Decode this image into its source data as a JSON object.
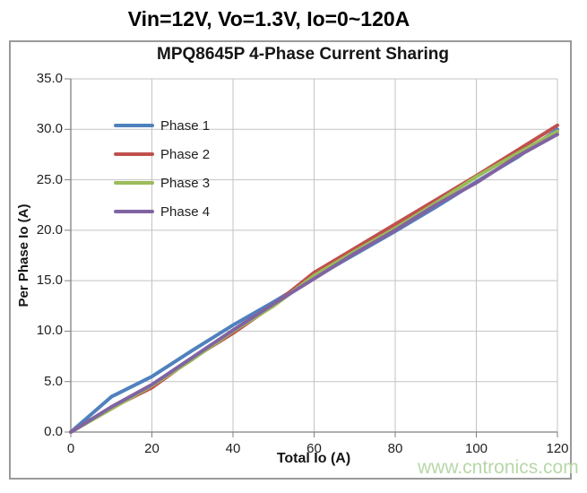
{
  "page": {
    "title": "Vin=12V, Vo=1.3V, Io=0~120A",
    "watermark": "www.cntronics.com"
  },
  "chart_data": {
    "type": "line",
    "title": "MPQ8645P 4-Phase Current Sharing",
    "xlabel": "Total Io (A)",
    "ylabel": "Per Phase Io (A)",
    "xlim": [
      0,
      120
    ],
    "ylim": [
      0,
      35
    ],
    "xticks": [
      0,
      20,
      40,
      60,
      80,
      100,
      120
    ],
    "yticks": [
      0,
      5,
      10,
      15,
      20,
      25,
      30,
      35
    ],
    "grid": true,
    "legend_position": "inside-top-left",
    "x": [
      0,
      10,
      20,
      30,
      40,
      50,
      60,
      70,
      80,
      90,
      100,
      110,
      120
    ],
    "series": [
      {
        "name": "Phase 1",
        "color": "#4F81BD",
        "values": [
          0,
          3.5,
          5.5,
          8.1,
          10.6,
          12.9,
          15.3,
          17.6,
          19.9,
          22.3,
          24.8,
          27.2,
          30.0
        ]
      },
      {
        "name": "Phase 2",
        "color": "#C0504D",
        "values": [
          0,
          2.4,
          4.4,
          7.3,
          9.8,
          12.6,
          15.8,
          18.2,
          20.6,
          23.0,
          25.4,
          27.9,
          30.4
        ]
      },
      {
        "name": "Phase 3",
        "color": "#9BBB59",
        "values": [
          0,
          2.3,
          4.6,
          7.2,
          10.0,
          12.5,
          15.5,
          17.9,
          20.2,
          22.7,
          25.3,
          27.6,
          29.8
        ]
      },
      {
        "name": "Phase 4",
        "color": "#8064A2",
        "values": [
          0,
          2.5,
          4.7,
          7.4,
          10.1,
          12.7,
          15.2,
          17.7,
          20.0,
          22.5,
          24.7,
          27.3,
          29.5
        ]
      }
    ]
  },
  "style": {
    "grid_color": "#c3c3c3",
    "axis_color": "#808080",
    "watermark_color": "#b7d7a8",
    "frame_border_color": "#9a9a9a"
  }
}
